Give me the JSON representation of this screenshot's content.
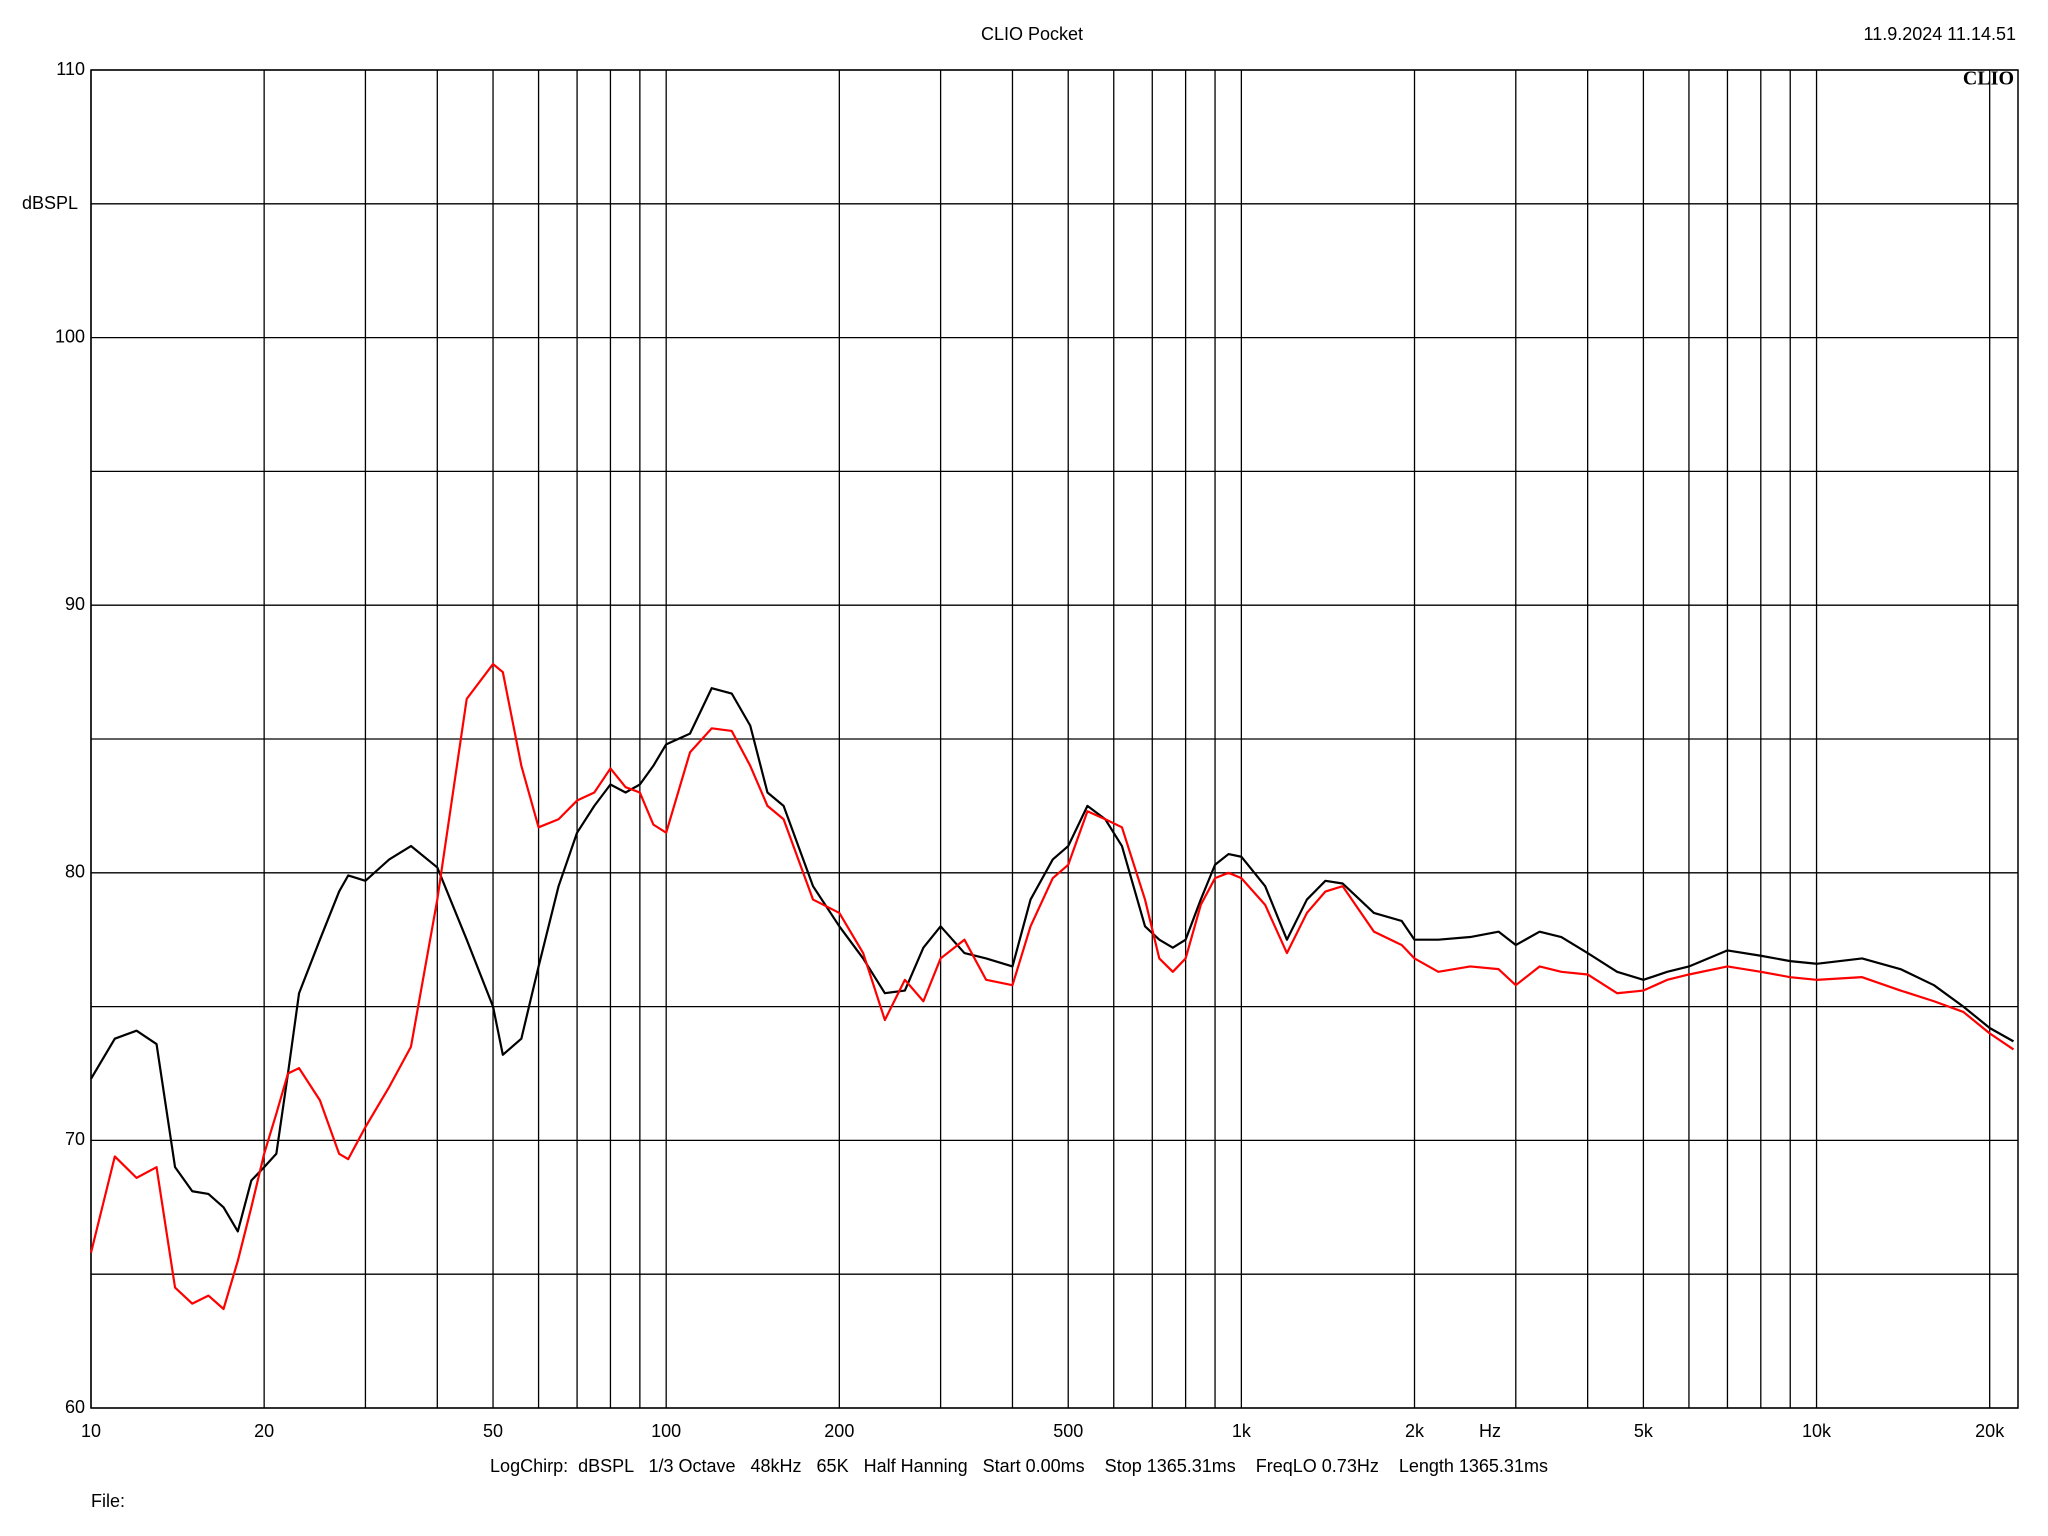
{
  "chart_data": {
    "type": "line",
    "title": "CLIO Pocket",
    "timestamp": "11.9.2024 11.14.51",
    "logo": "CLIO",
    "y_label": "dBSPL",
    "x_label": "Hz",
    "footer": "LogChirp:  dBSPL   1/3 Octave   48kHz   65K   Half Hanning   Start 0.00ms    Stop 1365.31ms    FreqLO 0.73Hz    Length 1365.31ms",
    "file_label": "File:",
    "log_x": true,
    "grid": true,
    "xlim": [
      10,
      22400
    ],
    "ylim": [
      60,
      110
    ],
    "yticks": [
      60,
      70,
      80,
      90,
      100,
      110
    ],
    "minor_yticks": [
      65,
      75,
      85,
      95,
      105
    ],
    "xticks": [
      10,
      20,
      50,
      100,
      200,
      500,
      {
        "value": 1000,
        "label": "1k"
      },
      {
        "value": 2000,
        "label": "2k"
      },
      {
        "value": 5000,
        "label": "5k"
      },
      {
        "value": 10000,
        "label": "10k"
      },
      {
        "value": 20000,
        "label": "20k"
      }
    ],
    "minor_xticks": [
      30,
      40,
      60,
      70,
      80,
      90,
      300,
      400,
      600,
      700,
      800,
      900,
      3000,
      4000,
      6000,
      7000,
      8000,
      9000
    ],
    "x": [
      10,
      11,
      12,
      13,
      14,
      15,
      16,
      17,
      18,
      19,
      20,
      21,
      22,
      23,
      25,
      27,
      28,
      30,
      33,
      36,
      40,
      45,
      50,
      52,
      56,
      60,
      65,
      70,
      75,
      80,
      85,
      90,
      95,
      100,
      110,
      120,
      130,
      140,
      150,
      160,
      180,
      200,
      220,
      240,
      260,
      280,
      300,
      330,
      360,
      400,
      430,
      470,
      500,
      540,
      580,
      620,
      680,
      720,
      760,
      800,
      850,
      900,
      950,
      1000,
      1100,
      1200,
      1300,
      1400,
      1500,
      1700,
      1900,
      2000,
      2200,
      2500,
      2800,
      3000,
      3300,
      3600,
      4000,
      4500,
      5000,
      5500,
      6000,
      7000,
      8000,
      9000,
      10000,
      12000,
      14000,
      16000,
      18000,
      20000,
      22000
    ],
    "series": [
      {
        "color": "#000000",
        "values": [
          72.3,
          73.8,
          74.1,
          73.6,
          69.0,
          68.1,
          68.0,
          67.5,
          66.6,
          68.5,
          69.0,
          69.5,
          72.5,
          75.5,
          77.5,
          79.3,
          79.9,
          79.7,
          80.5,
          81.0,
          80.2,
          77.5,
          75.0,
          73.2,
          73.8,
          76.5,
          79.5,
          81.5,
          82.5,
          83.3,
          83.0,
          83.3,
          84.0,
          84.8,
          85.2,
          86.9,
          86.7,
          85.5,
          83.0,
          82.5,
          79.5,
          78.0,
          76.8,
          75.5,
          75.6,
          77.2,
          78.0,
          77.0,
          76.8,
          76.5,
          79.0,
          80.5,
          81.0,
          82.5,
          82.0,
          81.0,
          78.0,
          77.5,
          77.2,
          77.5,
          79.0,
          80.3,
          80.7,
          80.6,
          79.5,
          77.5,
          79.0,
          79.7,
          79.6,
          78.5,
          78.2,
          77.5,
          77.5,
          77.6,
          77.8,
          77.3,
          77.8,
          77.6,
          77.0,
          76.3,
          76.0,
          76.3,
          76.5,
          77.1,
          76.9,
          76.7,
          76.6,
          76.8,
          76.4,
          75.8,
          75.0,
          74.2,
          73.7
        ]
      },
      {
        "color": "#ff0000",
        "values": [
          65.8,
          69.4,
          68.6,
          69.0,
          64.5,
          63.9,
          64.2,
          63.7,
          65.5,
          67.5,
          69.5,
          71.0,
          72.5,
          72.7,
          71.5,
          69.5,
          69.3,
          70.5,
          72.0,
          73.5,
          79.0,
          86.5,
          87.8,
          87.5,
          84.0,
          81.7,
          82.0,
          82.7,
          83.0,
          83.9,
          83.2,
          83.0,
          81.8,
          81.5,
          84.5,
          85.4,
          85.3,
          84.0,
          82.5,
          82.0,
          79.0,
          78.5,
          77.0,
          74.5,
          76.0,
          75.2,
          76.8,
          77.5,
          76.0,
          75.8,
          78.0,
          79.8,
          80.3,
          82.3,
          82.0,
          81.7,
          79.0,
          76.8,
          76.3,
          76.8,
          78.8,
          79.8,
          80.0,
          79.8,
          78.8,
          77.0,
          78.5,
          79.3,
          79.5,
          77.8,
          77.3,
          76.8,
          76.3,
          76.5,
          76.4,
          75.8,
          76.5,
          76.3,
          76.2,
          75.5,
          75.6,
          76.0,
          76.2,
          76.5,
          76.3,
          76.1,
          76.0,
          76.1,
          75.6,
          75.2,
          74.8,
          74.0,
          73.4
        ]
      }
    ]
  }
}
